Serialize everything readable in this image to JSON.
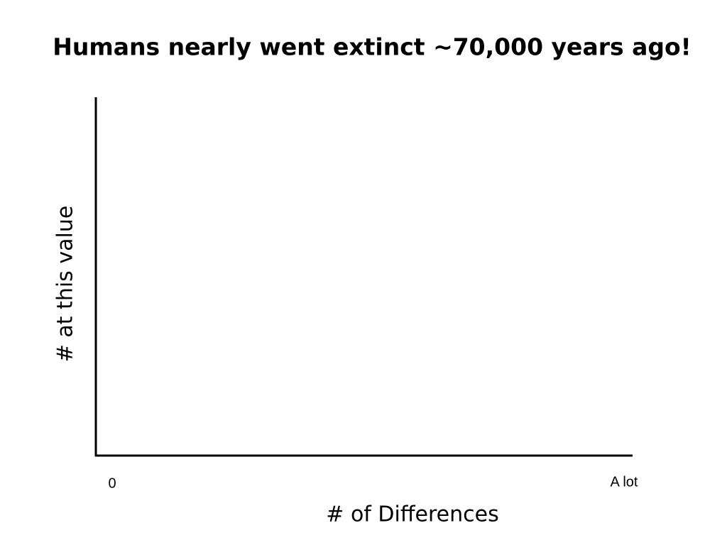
{
  "chart_data": {
    "type": "line",
    "title": "Humans nearly went extinct ~70,000 years ago!",
    "x_label": "# of Differences",
    "y_label": "# at this value",
    "x_end_labels": [
      "0",
      "A lot"
    ]
  }
}
